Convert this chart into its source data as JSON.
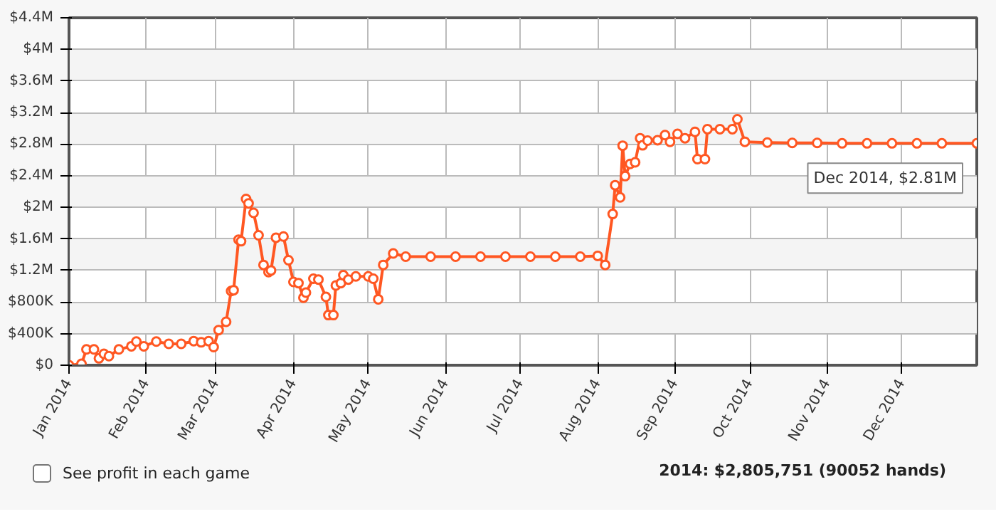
{
  "chart_data": {
    "type": "line",
    "x": [
      "2014-01-01",
      "2014-01-06",
      "2014-01-08",
      "2014-01-11",
      "2014-01-13",
      "2014-01-15",
      "2014-01-17",
      "2014-01-21",
      "2014-01-26",
      "2014-01-28",
      "2014-01-31",
      "2014-02-05",
      "2014-02-10",
      "2014-02-15",
      "2014-02-20",
      "2014-02-23",
      "2014-02-26",
      "2014-02-28",
      "2014-03-02",
      "2014-03-05",
      "2014-03-07",
      "2014-03-08",
      "2014-03-10",
      "2014-03-11",
      "2014-03-13",
      "2014-03-14",
      "2014-03-16",
      "2014-03-18",
      "2014-03-20",
      "2014-03-22",
      "2014-03-23",
      "2014-03-25",
      "2014-03-28",
      "2014-03-30",
      "2014-04-01",
      "2014-04-03",
      "2014-04-05",
      "2014-04-06",
      "2014-04-09",
      "2014-04-11",
      "2014-04-14",
      "2014-04-15",
      "2014-04-17",
      "2014-04-18",
      "2014-04-20",
      "2014-04-21",
      "2014-04-23",
      "2014-04-26",
      "2014-05-01",
      "2014-05-03",
      "2014-05-05",
      "2014-05-07",
      "2014-05-11",
      "2014-05-16",
      "2014-05-26",
      "2014-06-05",
      "2014-06-15",
      "2014-06-25",
      "2014-07-05",
      "2014-07-15",
      "2014-07-25",
      "2014-08-01",
      "2014-08-04",
      "2014-08-07",
      "2014-08-08",
      "2014-08-10",
      "2014-08-11",
      "2014-08-12",
      "2014-08-14",
      "2014-08-16",
      "2014-08-18",
      "2014-08-19",
      "2014-08-21",
      "2014-08-25",
      "2014-08-28",
      "2014-08-30",
      "2014-09-02",
      "2014-09-05",
      "2014-09-09",
      "2014-09-10",
      "2014-09-13",
      "2014-09-14",
      "2014-09-19",
      "2014-09-24",
      "2014-09-26",
      "2014-09-29",
      "2014-10-08",
      "2014-10-18",
      "2014-10-28",
      "2014-11-07",
      "2014-11-17",
      "2014-11-27",
      "2014-12-07",
      "2014-12-17",
      "2014-12-31"
    ],
    "series": [
      {
        "color": "#ff5722",
        "values": [
          0,
          17000,
          200000,
          200000,
          87000,
          144000,
          115000,
          200000,
          240000,
          300000,
          240000,
          300000,
          270000,
          270000,
          305000,
          290000,
          305000,
          230000,
          445000,
          550000,
          940000,
          950000,
          1590000,
          1570000,
          2105000,
          2050000,
          1930000,
          1645000,
          1270000,
          1180000,
          1200000,
          1615000,
          1630000,
          1330000,
          1055000,
          1040000,
          855000,
          920000,
          1095000,
          1085000,
          865000,
          635000,
          635000,
          1010000,
          1040000,
          1140000,
          1085000,
          1125000,
          1125000,
          1095000,
          835000,
          1270000,
          1415000,
          1375000,
          1375000,
          1375000,
          1375000,
          1375000,
          1375000,
          1375000,
          1375000,
          1385000,
          1270000,
          1915000,
          2280000,
          2125000,
          2780000,
          2395000,
          2550000,
          2570000,
          2875000,
          2785000,
          2845000,
          2850000,
          2915000,
          2830000,
          2930000,
          2875000,
          2955000,
          2610000,
          2610000,
          2990000,
          2990000,
          2990000,
          3115000,
          2830000,
          2820000,
          2815000,
          2815000,
          2810000,
          2810000,
          2810000,
          2810000,
          2810000,
          2810000
        ]
      }
    ],
    "xlim": [
      "2014-01-01",
      "2014-12-31"
    ],
    "xticks": [
      {
        "value": "2014-01-01",
        "label": "Jan 2014"
      },
      {
        "value": "2014-02-01",
        "label": "Feb 2014"
      },
      {
        "value": "2014-03-01",
        "label": "Mar 2014"
      },
      {
        "value": "2014-04-01",
        "label": "Apr 2014"
      },
      {
        "value": "2014-05-01",
        "label": "May 2014"
      },
      {
        "value": "2014-06-01",
        "label": "Jun 2014"
      },
      {
        "value": "2014-07-01",
        "label": "Jul 2014"
      },
      {
        "value": "2014-08-01",
        "label": "Aug 2014"
      },
      {
        "value": "2014-09-01",
        "label": "Sep 2014"
      },
      {
        "value": "2014-10-01",
        "label": "Oct 2014"
      },
      {
        "value": "2014-11-01",
        "label": "Nov 2014"
      },
      {
        "value": "2014-12-01",
        "label": "Dec 2014"
      }
    ],
    "ylim": [
      0,
      4400000
    ],
    "yticks": [
      {
        "value": 0,
        "label": "$0"
      },
      {
        "value": 400000,
        "label": "$400K"
      },
      {
        "value": 800000,
        "label": "$800K"
      },
      {
        "value": 1200000,
        "label": "$1.2M"
      },
      {
        "value": 1600000,
        "label": "$1.6M"
      },
      {
        "value": 2000000,
        "label": "$2M"
      },
      {
        "value": 2400000,
        "label": "$2.4M"
      },
      {
        "value": 2800000,
        "label": "$2.8M"
      },
      {
        "value": 3200000,
        "label": "$3.2M"
      },
      {
        "value": 3600000,
        "label": "$3.6M"
      },
      {
        "value": 4000000,
        "label": "$4M"
      },
      {
        "value": 4400000,
        "label": "$4.4M"
      }
    ],
    "grid": true,
    "marker": "circle",
    "line_style": "solid",
    "annotations": [
      {
        "text": "Dec 2014, $2.81M",
        "x": "2014-12-31",
        "y": 2810000
      },
      "See profit in each game",
      "2014: $2,805,751 (90052 hands)"
    ]
  }
}
